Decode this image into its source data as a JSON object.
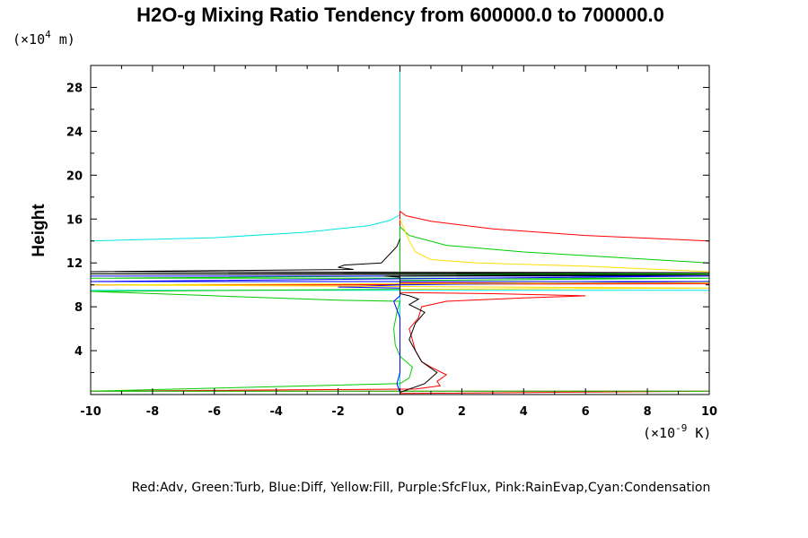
{
  "chart_data": {
    "type": "line",
    "title": "H2O-g Mixing Ratio Tendency from 600000.0 to 700000.0",
    "ylabel": "Height",
    "y_unit_prefix": "(×10",
    "y_unit_exponent": "4",
    "y_unit_suffix": " m)",
    "x_unit_prefix": "(×10",
    "x_unit_exponent": "-9",
    "x_unit_suffix": " K)",
    "xlim": [
      -10,
      10
    ],
    "ylim": [
      0,
      30
    ],
    "x_ticks": [
      -10,
      -8,
      -6,
      -4,
      -2,
      0,
      2,
      4,
      6,
      8,
      10
    ],
    "x_tick_labels": [
      "-10",
      "-8",
      "-6",
      "-4",
      "-2",
      "0",
      "2",
      "4",
      "6",
      "8",
      "10"
    ],
    "y_ticks": [
      4,
      8,
      12,
      16,
      20,
      24,
      28
    ],
    "y_tick_labels": [
      "4",
      "8",
      "12",
      "16",
      "20",
      "24",
      "28"
    ],
    "legend_text": "Red:Adv, Green:Turb, Blue:Diff, Yellow:Fill, Purple:SfcFlux, Pink:RainEvap,Cyan:Condensation",
    "colors": {
      "red": "#ff0000",
      "green": "#00cc00",
      "blue": "#0000ff",
      "yellow": "#ffdd00",
      "cyan": "#00e5e5",
      "black": "#000000"
    },
    "series": [
      {
        "color_key": "cyan",
        "points": [
          [
            -10,
            14.0
          ],
          [
            -6,
            14.3
          ],
          [
            -3,
            14.8
          ],
          [
            -1,
            15.4
          ],
          [
            -0.3,
            15.9
          ],
          [
            0,
            16.4
          ],
          [
            0,
            16.4
          ],
          [
            0,
            30
          ],
          [
            0,
            16.4
          ],
          [
            0,
            9.5
          ],
          [
            -10,
            9.5
          ],
          [
            10,
            9.5
          ],
          [
            0,
            9.5
          ],
          [
            0,
            0.2
          ]
        ]
      },
      {
        "color_key": "red",
        "points": [
          [
            10,
            14.0
          ],
          [
            6,
            14.5
          ],
          [
            3,
            15.1
          ],
          [
            1,
            15.8
          ],
          [
            0.2,
            16.3
          ],
          [
            0,
            16.7
          ],
          [
            0,
            16.7
          ],
          [
            0,
            10.0
          ],
          [
            -10,
            10.0
          ],
          [
            10,
            10.1
          ],
          [
            0,
            10.2
          ],
          [
            0,
            9.3
          ],
          [
            3,
            9.2
          ],
          [
            6,
            9.0
          ],
          [
            4,
            8.8
          ],
          [
            1.5,
            8.5
          ],
          [
            0.7,
            8.0
          ],
          [
            0.6,
            7.0
          ],
          [
            0.3,
            6.0
          ],
          [
            0.4,
            5.0
          ],
          [
            0.5,
            4.0
          ],
          [
            0.7,
            3.0
          ],
          [
            1.0,
            2.5
          ],
          [
            1.5,
            1.8
          ],
          [
            1.2,
            1.2
          ],
          [
            1.3,
            0.8
          ],
          [
            0.5,
            0.5
          ],
          [
            -10,
            0.3
          ],
          [
            10,
            0.3
          ],
          [
            0,
            0.1
          ]
        ]
      },
      {
        "color_key": "green",
        "points": [
          [
            10,
            12.0
          ],
          [
            7,
            12.5
          ],
          [
            4,
            13.0
          ],
          [
            1.5,
            13.6
          ],
          [
            0.3,
            14.5
          ],
          [
            0,
            15.3
          ],
          [
            0,
            13.5
          ],
          [
            0,
            11.0
          ],
          [
            -10,
            11.0
          ],
          [
            10,
            11.0
          ],
          [
            -10,
            10.6
          ],
          [
            10,
            10.6
          ],
          [
            0,
            10.4
          ],
          [
            0,
            9.6
          ],
          [
            -10,
            9.4
          ],
          [
            -6,
            9.0
          ],
          [
            -2,
            8.6
          ],
          [
            0,
            8.5
          ],
          [
            -0.1,
            7.5
          ],
          [
            -0.2,
            6.0
          ],
          [
            -0.15,
            4.5
          ],
          [
            0,
            3.5
          ],
          [
            0.4,
            2.5
          ],
          [
            0.3,
            1.5
          ],
          [
            0,
            1.0
          ],
          [
            -10,
            0.3
          ],
          [
            10,
            0.3
          ]
        ]
      },
      {
        "color_key": "blue",
        "points": [
          [
            -10,
            10.8
          ],
          [
            10,
            10.8
          ],
          [
            -10,
            10.3
          ],
          [
            10,
            10.3
          ],
          [
            0,
            10.0
          ],
          [
            -2,
            9.8
          ],
          [
            0,
            9.7
          ],
          [
            0,
            9.0
          ],
          [
            -0.2,
            8.5
          ],
          [
            0,
            7.0
          ],
          [
            0,
            2.0
          ],
          [
            -0.1,
            1.0
          ],
          [
            0,
            0.2
          ]
        ]
      },
      {
        "color_key": "yellow",
        "points": [
          [
            0,
            16.0
          ],
          [
            0.3,
            14.0
          ],
          [
            0.5,
            13.0
          ],
          [
            1.0,
            12.3
          ],
          [
            2.5,
            12.0
          ],
          [
            6,
            11.7
          ],
          [
            10,
            11.2
          ],
          [
            10,
            10.2
          ],
          [
            -10,
            10.0
          ],
          [
            10,
            9.7
          ],
          [
            0,
            9.6
          ]
        ]
      },
      {
        "color_key": "black",
        "points": [
          [
            0,
            14.2
          ],
          [
            -0.1,
            13.5
          ],
          [
            -0.6,
            12.0
          ],
          [
            -1.8,
            11.8
          ],
          [
            -2.0,
            11.6
          ],
          [
            -1.5,
            11.4
          ],
          [
            -10,
            11.2
          ],
          [
            10,
            11.1
          ],
          [
            -10,
            11.0
          ],
          [
            10,
            10.9
          ],
          [
            -0.5,
            10.8
          ],
          [
            0,
            10.7
          ],
          [
            0,
            9.2
          ],
          [
            0.3,
            9.0
          ],
          [
            0.6,
            8.7
          ],
          [
            0.3,
            8.2
          ],
          [
            0.8,
            7.5
          ],
          [
            0.5,
            6.5
          ],
          [
            0.3,
            5.0
          ],
          [
            0.5,
            4.0
          ],
          [
            0.7,
            3.0
          ],
          [
            1.2,
            2.0
          ],
          [
            1.0,
            1.5
          ],
          [
            0.8,
            1.0
          ],
          [
            0,
            0.2
          ]
        ]
      }
    ]
  }
}
